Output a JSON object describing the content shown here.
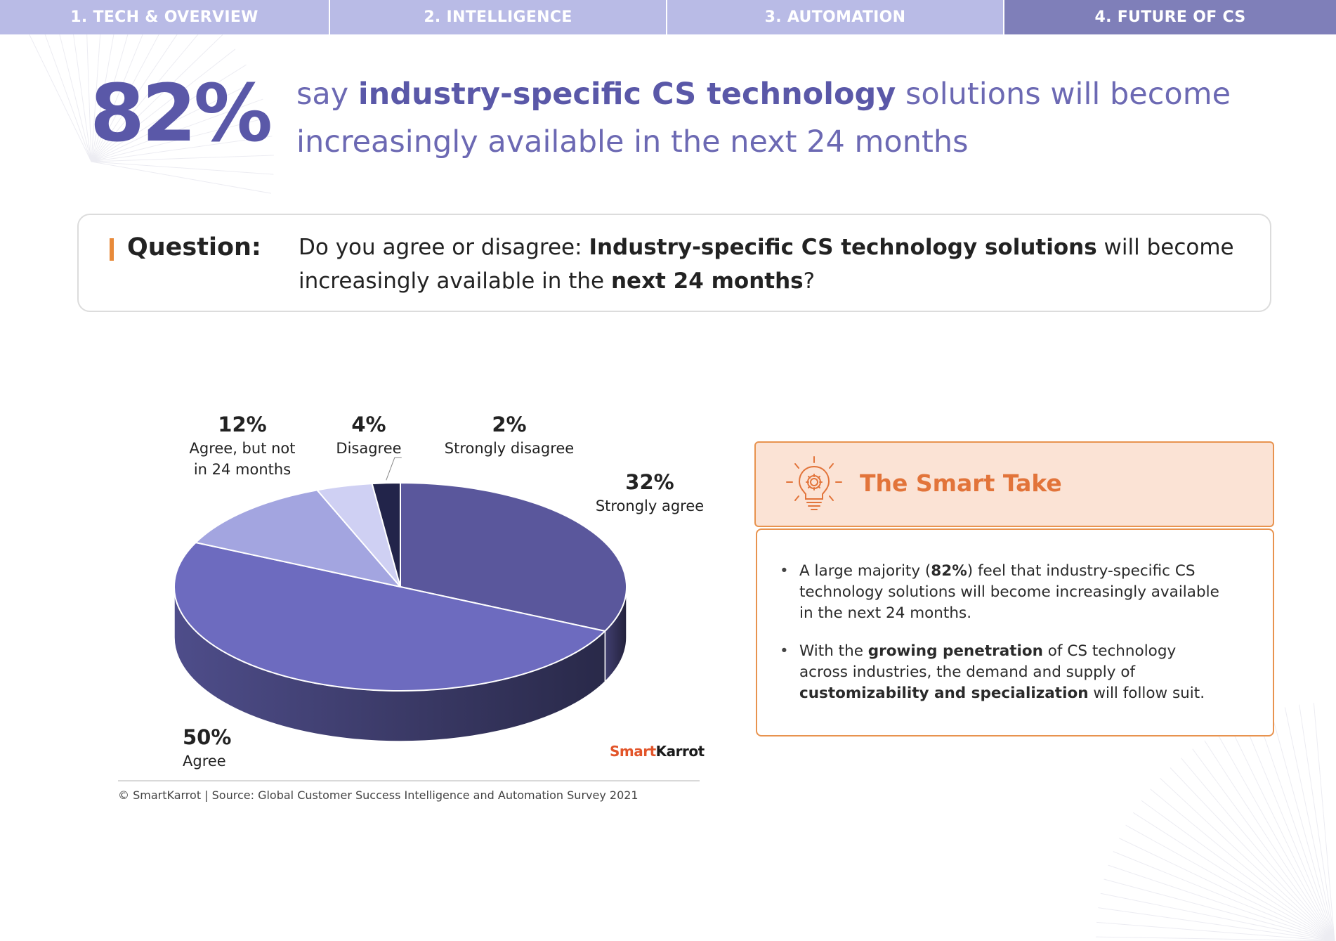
{
  "tabs": [
    {
      "label": "1. TECH & OVERVIEW",
      "active": false
    },
    {
      "label": "2. INTELLIGENCE",
      "active": false
    },
    {
      "label": "3. AUTOMATION",
      "active": false
    },
    {
      "label": "4. FUTURE OF CS",
      "active": true
    }
  ],
  "headline": {
    "percent": "82%",
    "pre": "say ",
    "bold": "industry-specific CS technology",
    "post": " solutions will become increasingly available in the next 24 months"
  },
  "question": {
    "label": "Question:",
    "t1": "Do you agree or disagree: ",
    "b1": "Industry-specific CS technology solutions",
    "t2": " will become increasingly available in the ",
    "b2": "next 24 months",
    "t3": "?"
  },
  "chart_data": {
    "type": "pie",
    "title": "",
    "slices": [
      {
        "label": "Strongly agree",
        "value": 32,
        "value_label": "32%",
        "color": "#5a579c"
      },
      {
        "label": "Agree",
        "value": 50,
        "value_label": "50%",
        "color": "#6d6bbf"
      },
      {
        "label": "Agree, but not in 24 months",
        "value": 12,
        "value_label": "12%",
        "color": "#a3a5e0"
      },
      {
        "label": "Disagree",
        "value": 4,
        "value_label": "4%",
        "color": "#cfd0f3"
      },
      {
        "label": "Strongly disagree",
        "value": 2,
        "value_label": "2%",
        "color": "#22244a"
      }
    ],
    "style": "3d"
  },
  "labels": {
    "agree_not": {
      "pct": "12%",
      "line1": "Agree, but not",
      "line2": "in 24 months"
    },
    "disagree": {
      "pct": "4%",
      "cat": "Disagree"
    },
    "strongly_disagree": {
      "pct": "2%",
      "cat": "Strongly disagree"
    },
    "strongly_agree": {
      "pct": "32%",
      "cat": "Strongly agree"
    },
    "agree": {
      "pct": "50%",
      "cat": "Agree"
    }
  },
  "logo": {
    "part1": "Smart",
    "part2": "Karrot"
  },
  "source": "© SmartKarrot | Source: Global Customer Success Intelligence and Automation Survey 2021",
  "smart_take": {
    "title": "The Smart Take",
    "b1": {
      "t1": "A large majority (",
      "b1": "82%",
      "t2": ") feel that industry-specific CS technology solutions will become increasingly available in the next 24 months."
    },
    "b2": {
      "t1": "With the ",
      "b1": "growing penetration",
      "t2": " of CS technology across industries, the demand and supply of ",
      "b2": "customizability and specialization",
      "t3": " will follow suit."
    }
  },
  "colors": {
    "accent_purple": "#5a58a8",
    "accent_orange": "#e8934f",
    "tab_bg": "#b9bbe6",
    "tab_active": "#7f7fb9"
  }
}
